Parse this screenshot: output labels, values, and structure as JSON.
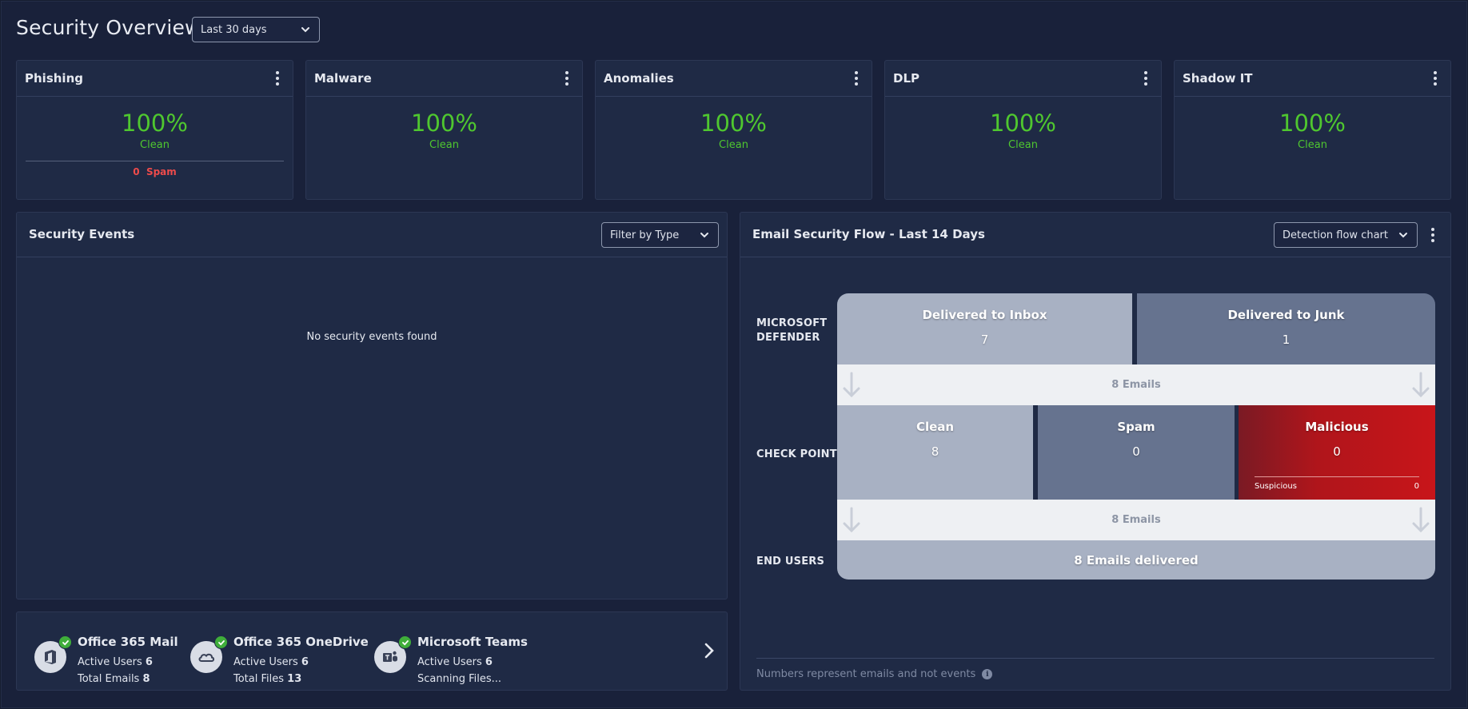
{
  "header": {
    "title": "Security Overview",
    "range": "Last 30 days"
  },
  "cards": [
    {
      "title": "Phishing",
      "percent": "100%",
      "status": "Clean",
      "spam_count": "0",
      "spam_label": "Spam"
    },
    {
      "title": "Malware",
      "percent": "100%",
      "status": "Clean"
    },
    {
      "title": "Anomalies",
      "percent": "100%",
      "status": "Clean"
    },
    {
      "title": "DLP",
      "percent": "100%",
      "status": "Clean"
    },
    {
      "title": "Shadow IT",
      "percent": "100%",
      "status": "Clean"
    }
  ],
  "events": {
    "title": "Security Events",
    "filter": "Filter by Type",
    "empty": "No security events found"
  },
  "services": [
    {
      "name": "Office 365 Mail",
      "l1_label": "Active Users",
      "l1_value": "6",
      "l2_label": "Total Emails",
      "l2_value": "8",
      "icon": "office-icon"
    },
    {
      "name": "Office 365 OneDrive",
      "l1_label": "Active Users",
      "l1_value": "6",
      "l2_label": "Total Files",
      "l2_value": "13",
      "icon": "onedrive-icon"
    },
    {
      "name": "Microsoft Teams",
      "l1_label": "Active Users",
      "l1_value": "6",
      "l2_label": "Scanning Files...",
      "l2_value": "",
      "icon": "teams-icon"
    }
  ],
  "flow": {
    "title": "Email Security Flow - Last 14 Days",
    "view": "Detection flow chart",
    "rows": {
      "defender_line1": "MICROSOFT",
      "defender_line2": "DEFENDER",
      "checkpoint": "CHECK POINT",
      "endusers": "END USERS"
    },
    "inbox": {
      "label": "Delivered to Inbox",
      "value": "7"
    },
    "junk": {
      "label": "Delivered to Junk",
      "value": "1"
    },
    "lane1": "8 Emails",
    "clean": {
      "label": "Clean",
      "value": "8"
    },
    "spam": {
      "label": "Spam",
      "value": "0"
    },
    "malicious": {
      "label": "Malicious",
      "value": "0",
      "sub_label": "Suspicious",
      "sub_value": "0"
    },
    "lane2": "8 Emails",
    "delivered": "8 Emails delivered",
    "footnote": "Numbers represent emails and not events"
  },
  "colors": {
    "clean_green": "#4fc72f",
    "spam_red": "#ee4b4b",
    "malicious_red": "#c8151a"
  }
}
